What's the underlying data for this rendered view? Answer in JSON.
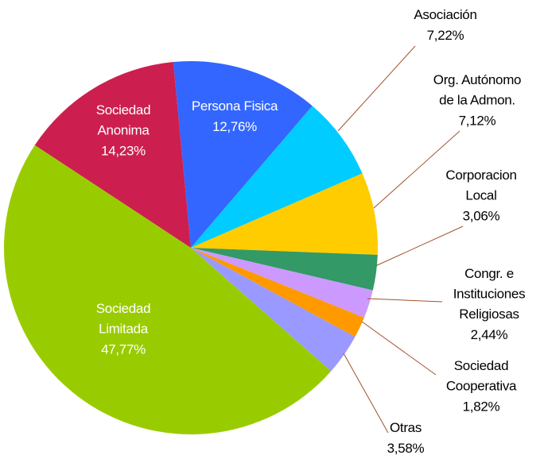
{
  "chart_data": {
    "type": "pie",
    "categories": [
      "Persona Fisica",
      "Asociación",
      "Org. Autónomo\nde la Admon.",
      "Corporacion\nLocal",
      "Congr. e\nInstituciones\nReligiosas",
      "Sociedad\nCooperativa",
      "Otras",
      "Sociedad\nLimitada",
      "Sociedad\nAnonima"
    ],
    "values": [
      12.76,
      7.22,
      7.12,
      3.06,
      2.44,
      1.82,
      3.58,
      47.77,
      14.23
    ],
    "value_labels": [
      "12,76%",
      "7,22%",
      "7,12%",
      "3,06%",
      "2,44%",
      "1,82%",
      "3,58%",
      "47,77%",
      "14,23%"
    ],
    "colors": [
      "#3366ff",
      "#00ccff",
      "#ffcc00",
      "#339966",
      "#cc99ff",
      "#ff9900",
      "#9999ff",
      "#99cc00",
      "#cc1f4f"
    ]
  }
}
